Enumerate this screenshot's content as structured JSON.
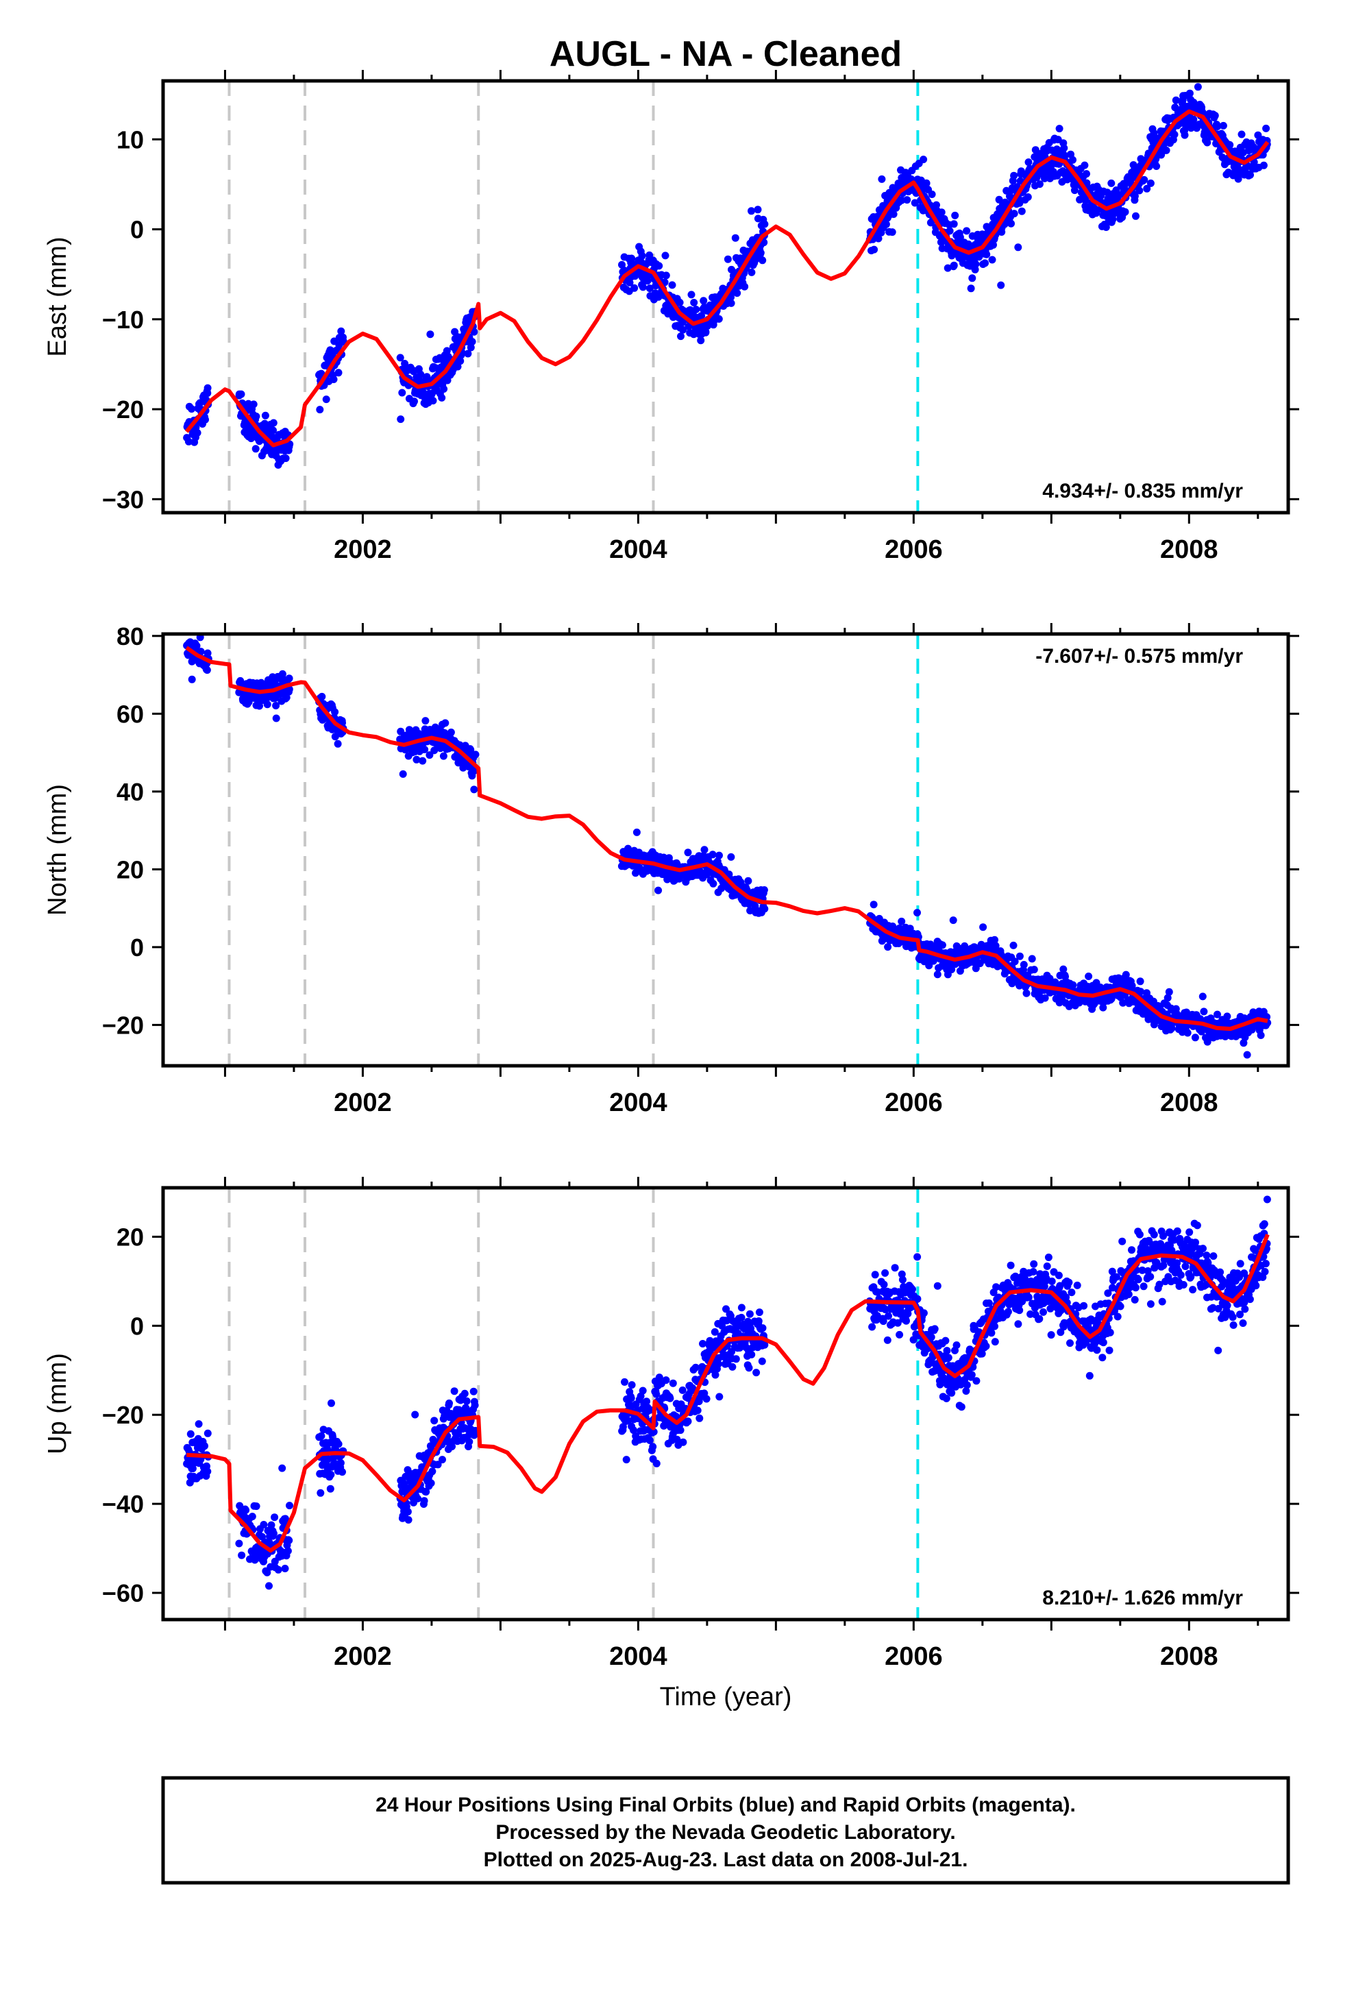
{
  "title": "AUGL  - NA - Cleaned",
  "footer": {
    "lines": [
      "24 Hour Positions Using Final Orbits (blue) and Rapid Orbits (magenta).",
      "Processed by the Nevada Geodetic Laboratory.",
      "Plotted on 2025-Aug-23. Last data on 2008-Jul-21."
    ]
  },
  "colors": {
    "data_points": "#0000ff",
    "model_fit": "#ff0000",
    "equipment_change": "#c8c8c8",
    "cyan_marker": "#00e5ee",
    "frame": "#000000"
  },
  "chart_data": [
    {
      "type": "scatter",
      "component": "east",
      "ylabel": "East (mm)",
      "xlabel": "",
      "xlim": [
        2000.55,
        2008.72
      ],
      "ylim": [
        -31.5,
        16.5
      ],
      "xticks": [
        2002,
        2004,
        2006,
        2008
      ],
      "yticks": [
        -30,
        -20,
        -10,
        0,
        10
      ],
      "rate_text": "4.934+/- 0.835 mm/yr",
      "rate_position": "bottom-right",
      "equipment_change_lines": [
        2001.03,
        2001.58,
        2002.84,
        2004.11
      ],
      "cyan_lines": [
        2006.03
      ],
      "model_fit": [
        [
          2000.72,
          -22.5
        ],
        [
          2000.8,
          -21
        ],
        [
          2000.9,
          -19
        ],
        [
          2001.0,
          -17.8
        ],
        [
          2001.03,
          -18
        ],
        [
          2001.15,
          -20.5
        ],
        [
          2001.25,
          -22.5
        ],
        [
          2001.35,
          -24
        ],
        [
          2001.45,
          -23.5
        ],
        [
          2001.55,
          -22
        ],
        [
          2001.58,
          -19.5
        ],
        [
          2001.7,
          -17
        ],
        [
          2001.8,
          -14.5
        ],
        [
          2001.9,
          -12.5
        ],
        [
          2002.0,
          -11.6
        ],
        [
          2002.1,
          -12.2
        ],
        [
          2002.2,
          -14.3
        ],
        [
          2002.3,
          -16.5
        ],
        [
          2002.4,
          -17.5
        ],
        [
          2002.5,
          -17.2
        ],
        [
          2002.6,
          -15.8
        ],
        [
          2002.7,
          -13.5
        ],
        [
          2002.8,
          -10.5
        ],
        [
          2002.84,
          -8.3
        ],
        [
          2002.85,
          -11
        ],
        [
          2002.9,
          -10
        ],
        [
          2003.0,
          -9.3
        ],
        [
          2003.1,
          -10.2
        ],
        [
          2003.2,
          -12.5
        ],
        [
          2003.3,
          -14.3
        ],
        [
          2003.4,
          -15
        ],
        [
          2003.5,
          -14.2
        ],
        [
          2003.6,
          -12.4
        ],
        [
          2003.7,
          -10.1
        ],
        [
          2003.8,
          -7.5
        ],
        [
          2003.9,
          -5.2
        ],
        [
          2004.0,
          -4.1
        ],
        [
          2004.11,
          -4.8
        ],
        [
          2004.2,
          -7
        ],
        [
          2004.3,
          -9.3
        ],
        [
          2004.4,
          -10.5
        ],
        [
          2004.5,
          -10
        ],
        [
          2004.6,
          -8.2
        ],
        [
          2004.7,
          -5.8
        ],
        [
          2004.8,
          -3.2
        ],
        [
          2004.9,
          -0.8
        ],
        [
          2005.0,
          0.3
        ],
        [
          2005.1,
          -0.6
        ],
        [
          2005.2,
          -2.8
        ],
        [
          2005.3,
          -4.8
        ],
        [
          2005.4,
          -5.5
        ],
        [
          2005.5,
          -4.9
        ],
        [
          2005.6,
          -3
        ],
        [
          2005.7,
          -0.5
        ],
        [
          2005.8,
          2.1
        ],
        [
          2005.9,
          4.2
        ],
        [
          2006.0,
          5.2
        ],
        [
          2006.03,
          4.5
        ],
        [
          2006.1,
          2.5
        ],
        [
          2006.2,
          0
        ],
        [
          2006.3,
          -2
        ],
        [
          2006.4,
          -2.6
        ],
        [
          2006.5,
          -2
        ],
        [
          2006.6,
          0
        ],
        [
          2006.7,
          2.5
        ],
        [
          2006.8,
          5
        ],
        [
          2006.9,
          7
        ],
        [
          2007.0,
          8
        ],
        [
          2007.1,
          7.5
        ],
        [
          2007.2,
          5.5
        ],
        [
          2007.3,
          3.2
        ],
        [
          2007.4,
          2.3
        ],
        [
          2007.5,
          2.9
        ],
        [
          2007.6,
          4.8
        ],
        [
          2007.7,
          7.3
        ],
        [
          2007.8,
          9.9
        ],
        [
          2007.9,
          12
        ],
        [
          2008.0,
          13.1
        ],
        [
          2008.1,
          12.5
        ],
        [
          2008.2,
          10.3
        ],
        [
          2008.3,
          8.1
        ],
        [
          2008.4,
          7.4
        ],
        [
          2008.5,
          8.3
        ],
        [
          2008.57,
          9.7
        ]
      ]
    },
    {
      "type": "scatter",
      "component": "north",
      "ylabel": "North (mm)",
      "xlabel": "",
      "xlim": [
        2000.55,
        2008.72
      ],
      "ylim": [
        -30.5,
        80.5
      ],
      "xticks": [
        2002,
        2004,
        2006,
        2008
      ],
      "yticks": [
        -20,
        0,
        20,
        40,
        60,
        80
      ],
      "rate_text": "-7.607+/- 0.575 mm/yr",
      "rate_position": "top-right",
      "equipment_change_lines": [
        2001.03,
        2001.58,
        2002.84,
        2004.11
      ],
      "cyan_lines": [
        2006.03
      ],
      "model_fit": [
        [
          2000.72,
          77
        ],
        [
          2000.8,
          75
        ],
        [
          2000.9,
          73.3
        ],
        [
          2001.0,
          72.8
        ],
        [
          2001.03,
          72.7
        ],
        [
          2001.04,
          67.2
        ],
        [
          2001.15,
          66.2
        ],
        [
          2001.25,
          65.6
        ],
        [
          2001.35,
          66
        ],
        [
          2001.45,
          67.3
        ],
        [
          2001.55,
          68.1
        ],
        [
          2001.58,
          68
        ],
        [
          2001.7,
          61.8
        ],
        [
          2001.8,
          57.5
        ],
        [
          2001.9,
          55.2
        ],
        [
          2002.0,
          54.5
        ],
        [
          2002.1,
          54
        ],
        [
          2002.2,
          52.7
        ],
        [
          2002.3,
          52
        ],
        [
          2002.4,
          53
        ],
        [
          2002.5,
          53.8
        ],
        [
          2002.6,
          53
        ],
        [
          2002.7,
          50.5
        ],
        [
          2002.84,
          46
        ],
        [
          2002.85,
          39
        ],
        [
          2003.0,
          37
        ],
        [
          2003.1,
          35.2
        ],
        [
          2003.2,
          33.5
        ],
        [
          2003.3,
          33
        ],
        [
          2003.4,
          33.6
        ],
        [
          2003.5,
          33.8
        ],
        [
          2003.6,
          31.5
        ],
        [
          2003.7,
          27.5
        ],
        [
          2003.8,
          24.2
        ],
        [
          2003.9,
          22.5
        ],
        [
          2004.0,
          22
        ],
        [
          2004.11,
          21.5
        ],
        [
          2004.2,
          20.6
        ],
        [
          2004.3,
          19.8
        ],
        [
          2004.4,
          20.5
        ],
        [
          2004.5,
          21.3
        ],
        [
          2004.6,
          19.2
        ],
        [
          2004.7,
          15.5
        ],
        [
          2004.8,
          12.8
        ],
        [
          2004.9,
          11.6
        ],
        [
          2005.0,
          11.4
        ],
        [
          2005.1,
          10.5
        ],
        [
          2005.2,
          9.3
        ],
        [
          2005.3,
          8.7
        ],
        [
          2005.4,
          9.3
        ],
        [
          2005.5,
          10
        ],
        [
          2005.6,
          9.2
        ],
        [
          2005.7,
          6.5
        ],
        [
          2005.8,
          4
        ],
        [
          2005.9,
          2.4
        ],
        [
          2006.0,
          1.9
        ],
        [
          2006.03,
          1.8
        ],
        [
          2006.04,
          -0.8
        ],
        [
          2006.1,
          -1.2
        ],
        [
          2006.2,
          -2.3
        ],
        [
          2006.3,
          -3.2
        ],
        [
          2006.4,
          -2.5
        ],
        [
          2006.5,
          -1.3
        ],
        [
          2006.6,
          -2.2
        ],
        [
          2006.7,
          -5.5
        ],
        [
          2006.8,
          -8.5
        ],
        [
          2006.9,
          -10
        ],
        [
          2007.0,
          -10.5
        ],
        [
          2007.1,
          -11
        ],
        [
          2007.2,
          -12.2
        ],
        [
          2007.3,
          -12.5
        ],
        [
          2007.4,
          -11.6
        ],
        [
          2007.5,
          -10.8
        ],
        [
          2007.6,
          -12
        ],
        [
          2007.7,
          -15
        ],
        [
          2007.8,
          -17.8
        ],
        [
          2007.9,
          -19
        ],
        [
          2008.0,
          -19.3
        ],
        [
          2008.1,
          -19.7
        ],
        [
          2008.2,
          -20.8
        ],
        [
          2008.3,
          -21
        ],
        [
          2008.4,
          -19.8
        ],
        [
          2008.5,
          -18.5
        ],
        [
          2008.57,
          -19
        ]
      ]
    },
    {
      "type": "scatter",
      "component": "up",
      "ylabel": "Up (mm)",
      "xlabel": "Time (year)",
      "xlim": [
        2000.55,
        2008.72
      ],
      "ylim": [
        -66,
        31
      ],
      "xticks": [
        2002,
        2004,
        2006,
        2008
      ],
      "yticks": [
        -60,
        -40,
        -20,
        0,
        20
      ],
      "rate_text": "8.210+/- 1.626 mm/yr",
      "rate_position": "bottom-right",
      "equipment_change_lines": [
        2001.03,
        2001.58,
        2002.84,
        2004.11
      ],
      "cyan_lines": [
        2006.03
      ],
      "model_fit": [
        [
          2000.72,
          -29
        ],
        [
          2000.9,
          -29.3
        ],
        [
          2001.0,
          -30
        ],
        [
          2001.03,
          -31
        ],
        [
          2001.04,
          -41.5
        ],
        [
          2001.15,
          -45
        ],
        [
          2001.25,
          -48.8
        ],
        [
          2001.33,
          -50.5
        ],
        [
          2001.4,
          -49
        ],
        [
          2001.5,
          -42
        ],
        [
          2001.58,
          -32
        ],
        [
          2001.7,
          -28.8
        ],
        [
          2001.8,
          -28.6
        ],
        [
          2001.9,
          -28.7
        ],
        [
          2002.0,
          -30.2
        ],
        [
          2002.1,
          -33.5
        ],
        [
          2002.2,
          -37
        ],
        [
          2002.3,
          -39.2
        ],
        [
          2002.4,
          -36
        ],
        [
          2002.5,
          -29.5
        ],
        [
          2002.6,
          -24
        ],
        [
          2002.7,
          -21
        ],
        [
          2002.84,
          -20.5
        ],
        [
          2002.85,
          -27
        ],
        [
          2002.95,
          -27.2
        ],
        [
          2003.05,
          -28.5
        ],
        [
          2003.15,
          -32
        ],
        [
          2003.25,
          -36.5
        ],
        [
          2003.3,
          -37.3
        ],
        [
          2003.4,
          -34
        ],
        [
          2003.5,
          -26.5
        ],
        [
          2003.6,
          -21.5
        ],
        [
          2003.7,
          -19.3
        ],
        [
          2003.8,
          -19
        ],
        [
          2003.9,
          -19
        ],
        [
          2004.0,
          -19.8
        ],
        [
          2004.11,
          -23
        ],
        [
          2004.12,
          -17
        ],
        [
          2004.2,
          -20
        ],
        [
          2004.28,
          -21.8
        ],
        [
          2004.35,
          -20
        ],
        [
          2004.45,
          -13
        ],
        [
          2004.55,
          -6.5
        ],
        [
          2004.65,
          -3.2
        ],
        [
          2004.75,
          -2.8
        ],
        [
          2004.9,
          -2.8
        ],
        [
          2005.0,
          -4.2
        ],
        [
          2005.1,
          -8
        ],
        [
          2005.2,
          -12
        ],
        [
          2005.27,
          -13
        ],
        [
          2005.35,
          -9.5
        ],
        [
          2005.45,
          -2
        ],
        [
          2005.55,
          3.5
        ],
        [
          2005.65,
          5.5
        ],
        [
          2005.8,
          5.3
        ],
        [
          2006.0,
          5.2
        ],
        [
          2006.03,
          3.5
        ],
        [
          2006.05,
          -1.5
        ],
        [
          2006.15,
          -5.5
        ],
        [
          2006.22,
          -9.5
        ],
        [
          2006.3,
          -11.3
        ],
        [
          2006.4,
          -9
        ],
        [
          2006.5,
          -2
        ],
        [
          2006.6,
          4.5
        ],
        [
          2006.7,
          7.5
        ],
        [
          2006.85,
          8
        ],
        [
          2007.0,
          7.5
        ],
        [
          2007.1,
          4.5
        ],
        [
          2007.2,
          0
        ],
        [
          2007.28,
          -2.5
        ],
        [
          2007.35,
          -1
        ],
        [
          2007.45,
          5
        ],
        [
          2007.55,
          11.5
        ],
        [
          2007.65,
          15
        ],
        [
          2007.8,
          15.8
        ],
        [
          2007.95,
          15.5
        ],
        [
          2008.05,
          14
        ],
        [
          2008.15,
          10
        ],
        [
          2008.25,
          6.5
        ],
        [
          2008.32,
          5.5
        ],
        [
          2008.4,
          8
        ],
        [
          2008.5,
          15
        ],
        [
          2008.57,
          20.5
        ]
      ]
    }
  ]
}
